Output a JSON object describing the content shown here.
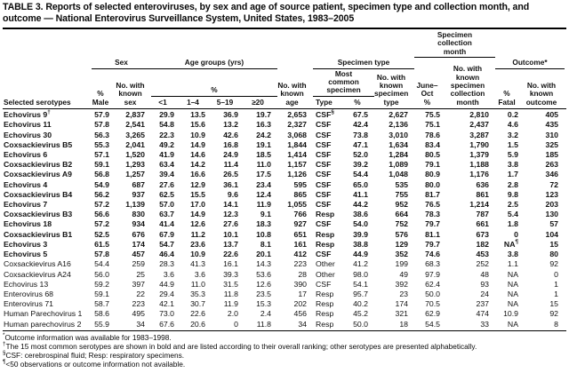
{
  "title": "TABLE 3. Reports of selected enteroviruses, by sex and age of source patient, specimen type and collection month, and outcome — National Enterovirus Surveillance System, United States, 1983–2005",
  "header": {
    "groups": {
      "sex": "Sex",
      "age": "Age groups (yrs)",
      "age_pct": "%",
      "specimen_type": "Specimen type",
      "most_common": "Most\ncommon\nspecimen",
      "collection_month": "Specimen\ncollection\nmonth",
      "outcome": "Outcome*"
    },
    "columns": [
      "Selected serotypes",
      "%\nMale",
      "No. with\nknown\nsex",
      "<1",
      "1–4",
      "5–19",
      "≥20",
      "No. with\nknown\nage",
      "Type",
      "%",
      "No. with\nknown\nspecimen\ntype",
      "June–\nOct\n%",
      "No. with\nknown\nspecimen\ncollection\nmonth",
      "%\nFatal",
      "No. with\nknown\noutcome"
    ]
  },
  "table": {
    "rows": [
      {
        "bold": true,
        "cells": [
          {
            "t": "Echovirus 9",
            "s": "†"
          },
          "57.9",
          "2,837",
          "29.9",
          "13.5",
          "36.9",
          "19.7",
          "2,653",
          {
            "t": "CSF",
            "s": "§"
          },
          "67.5",
          "2,627",
          "75.5",
          "2,810",
          "0.2",
          "405"
        ]
      },
      {
        "bold": true,
        "cells": [
          "Echovirus 11",
          "57.8",
          "2,541",
          "54.8",
          "15.6",
          "13.2",
          "16.3",
          "2,327",
          "CSF",
          "42.4",
          "2,136",
          "75.1",
          "2,437",
          "4.6",
          "435"
        ]
      },
      {
        "bold": true,
        "cells": [
          "Echovirus 30",
          "56.3",
          "3,265",
          "22.3",
          "10.9",
          "42.6",
          "24.2",
          "3,068",
          "CSF",
          "73.8",
          "3,010",
          "78.6",
          "3,287",
          "3.2",
          "310"
        ]
      },
      {
        "bold": true,
        "cells": [
          "Coxsackievirus B5",
          "55.3",
          "2,041",
          "49.2",
          "14.9",
          "16.8",
          "19.1",
          "1,844",
          "CSF",
          "47.1",
          "1,634",
          "83.4",
          "1,790",
          "1.5",
          "325"
        ]
      },
      {
        "bold": true,
        "cells": [
          "Echovirus 6",
          "57.1",
          "1,520",
          "41.9",
          "14.6",
          "24.9",
          "18.5",
          "1,414",
          "CSF",
          "52.0",
          "1,284",
          "80.5",
          "1,379",
          "5.9",
          "185"
        ]
      },
      {
        "bold": true,
        "cells": [
          "Coxsackievirus B2",
          "59.1",
          "1,293",
          "63.4",
          "14.2",
          "11.4",
          "11.0",
          "1,157",
          "CSF",
          "39.2",
          "1,089",
          "79.1",
          "1,188",
          "3.8",
          "263"
        ]
      },
      {
        "bold": true,
        "cells": [
          "Coxsackievirus A9",
          "56.8",
          "1,257",
          "39.4",
          "16.6",
          "26.5",
          "17.5",
          "1,126",
          "CSF",
          "54.4",
          "1,048",
          "80.9",
          "1,176",
          "1.7",
          "346"
        ]
      },
      {
        "bold": true,
        "cells": [
          "Echovirus 4",
          "54.9",
          "687",
          "27.6",
          "12.9",
          "36.1",
          "23.4",
          "595",
          "CSF",
          "65.0",
          "535",
          "80.0",
          "636",
          "2.8",
          "72"
        ]
      },
      {
        "bold": true,
        "cells": [
          "Coxsackievirus B4",
          "56.2",
          "937",
          "62.5",
          "15.5",
          "9.6",
          "12.4",
          "865",
          "CSF",
          "41.1",
          "755",
          "81.7",
          "861",
          "9.8",
          "123"
        ]
      },
      {
        "bold": true,
        "cells": [
          "Echovirus 7",
          "57.2",
          "1,139",
          "57.0",
          "17.0",
          "14.1",
          "11.9",
          "1,055",
          "CSF",
          "44.2",
          "952",
          "76.5",
          "1,214",
          "2.5",
          "203"
        ]
      },
      {
        "bold": true,
        "cells": [
          "Coxsackievirus B3",
          "56.6",
          "830",
          "63.7",
          "14.9",
          "12.3",
          "9.1",
          "766",
          "Resp",
          "38.6",
          "664",
          "78.3",
          "787",
          "5.4",
          "130"
        ]
      },
      {
        "bold": true,
        "cells": [
          "Echovirus 18",
          "57.2",
          "934",
          "41.4",
          "12.6",
          "27.6",
          "18.3",
          "927",
          "CSF",
          "54.0",
          "752",
          "79.7",
          "661",
          "1.8",
          "57"
        ]
      },
      {
        "bold": true,
        "cells": [
          "Coxsackievirus B1",
          "52.5",
          "676",
          "67.9",
          "11.2",
          "10.1",
          "10.8",
          "651",
          "Resp",
          "39.9",
          "576",
          "81.1",
          "673",
          "0",
          "104"
        ]
      },
      {
        "bold": true,
        "cells": [
          "Echovirus 3",
          "61.5",
          "174",
          "54.7",
          "23.6",
          "13.7",
          "8.1",
          "161",
          "Resp",
          "38.8",
          "129",
          "79.7",
          "182",
          {
            "t": "NA",
            "s": "¶"
          },
          "15"
        ]
      },
      {
        "bold": true,
        "cells": [
          "Echovirus 5",
          "57.8",
          "457",
          "46.4",
          "10.9",
          "22.6",
          "20.1",
          "412",
          "CSF",
          "44.9",
          "352",
          "74.6",
          "453",
          "3.8",
          "80"
        ]
      },
      {
        "bold": false,
        "cells": [
          "Coxsackievirus A16",
          "54.4",
          "259",
          "28.3",
          "41.3",
          "16.1",
          "14.3",
          "223",
          "Other",
          "41.2",
          "199",
          "68.3",
          "252",
          "1.1",
          "92"
        ]
      },
      {
        "bold": false,
        "cells": [
          "Coxsackievirus A24",
          "56.0",
          "25",
          "3.6",
          "3.6",
          "39.3",
          "53.6",
          "28",
          "Other",
          "98.0",
          "49",
          "97.9",
          "48",
          "NA",
          "0"
        ]
      },
      {
        "bold": false,
        "cells": [
          "Echovirus 13",
          "59.2",
          "397",
          "44.9",
          "11.0",
          "31.5",
          "12.6",
          "390",
          "CSF",
          "54.1",
          "392",
          "62.4",
          "93",
          "NA",
          "1"
        ]
      },
      {
        "bold": false,
        "cells": [
          "Enterovirus 68",
          "59.1",
          "22",
          "29.4",
          "35.3",
          "11.8",
          "23.5",
          "17",
          "Resp",
          "95.7",
          "23",
          "50.0",
          "24",
          "NA",
          "1"
        ]
      },
      {
        "bold": false,
        "cells": [
          "Enterovirus 71",
          "58.7",
          "223",
          "42.1",
          "30.7",
          "11.9",
          "15.3",
          "202",
          "Resp",
          "40.2",
          "174",
          "70.5",
          "237",
          "NA",
          "15"
        ]
      },
      {
        "bold": false,
        "cells": [
          "Human Parechovirus 1",
          "58.6",
          "495",
          "73.0",
          "22.6",
          "2.0",
          "2.4",
          "456",
          "Resp",
          "45.2",
          "321",
          "62.9",
          "474",
          "10.9",
          "92"
        ]
      },
      {
        "bold": false,
        "cells": [
          "Human parechovirus 2",
          "55.9",
          "34",
          "67.6",
          "20.6",
          "0",
          "11.8",
          "34",
          "Resp",
          "50.0",
          "18",
          "54.5",
          "33",
          "NA",
          "8"
        ]
      }
    ]
  },
  "footnotes": [
    {
      "marker": "*",
      "text": "Outcome information was available for 1983–1998."
    },
    {
      "marker": "†",
      "text": "The 15 most common serotypes are shown in bold and are listed according to their overall ranking; other serotypes are presented alphabetically."
    },
    {
      "marker": "§",
      "text": "CSF: cerebrospinal fluid; Resp: respiratory specimens."
    },
    {
      "marker": "¶",
      "text": "<50 observations or outcome information not available."
    }
  ]
}
